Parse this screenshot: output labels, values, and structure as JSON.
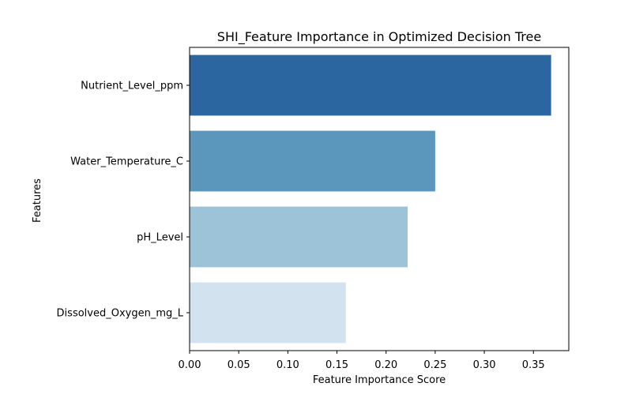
{
  "chart_data": {
    "type": "bar",
    "orientation": "horizontal",
    "title": "SHI_Feature Importance in Optimized Decision Tree",
    "xlabel": "Feature Importance Score",
    "ylabel": "Features",
    "categories": [
      "Nutrient_Level_ppm",
      "Water_Temperature_C",
      "pH_Level",
      "Dissolved_Oxygen_mg_L"
    ],
    "values": [
      0.368,
      0.25,
      0.222,
      0.159
    ],
    "colors": [
      "#2b66a0",
      "#5b96bd",
      "#9cc3d8",
      "#d3e2ef"
    ],
    "xlim": [
      0,
      0.386
    ],
    "xticks": [
      0,
      0.05,
      0.1,
      0.15,
      0.2,
      0.25,
      0.3,
      0.35
    ],
    "xtick_labels": [
      "0.00",
      "0.05",
      "0.10",
      "0.15",
      "0.20",
      "0.25",
      "0.30",
      "0.35"
    ],
    "grid": false,
    "legend": "none"
  }
}
